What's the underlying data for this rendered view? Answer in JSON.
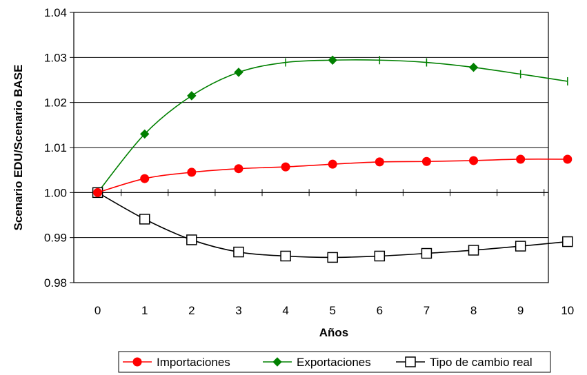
{
  "chart_data": {
    "type": "line",
    "title": "",
    "xlabel": "Años",
    "ylabel": "Scenario EDU/Scenario BASE",
    "x": [
      0,
      1,
      2,
      3,
      4,
      5,
      6,
      7,
      8,
      9,
      10
    ],
    "xlim": [
      0,
      10
    ],
    "ylim": [
      0.98,
      1.04
    ],
    "yticks": [
      "0.98",
      "0.99",
      "1.00",
      "1.01",
      "1.02",
      "1.03",
      "1.04"
    ],
    "grid": "horizontal",
    "legend_position": "bottom",
    "series": [
      {
        "name": "Importaciones",
        "color": "#ff0000",
        "marker": "circle",
        "values": [
          1.0,
          1.0031,
          1.0045,
          1.0053,
          1.0057,
          1.0063,
          1.0068,
          1.0069,
          1.0071,
          1.0074,
          1.0074
        ]
      },
      {
        "name": "Exportaciones",
        "color": "#008000",
        "marker": "diamond",
        "values": [
          1.0,
          1.013,
          1.0215,
          1.0267,
          1.0289,
          1.0294,
          1.0294,
          1.0289,
          1.0278,
          1.0263,
          1.0247
        ]
      },
      {
        "name": "Tipo de cambio real",
        "color": "#000000",
        "marker": "square-open",
        "values": [
          1.0,
          0.9941,
          0.9895,
          0.9868,
          0.9859,
          0.9856,
          0.9859,
          0.9865,
          0.9872,
          0.9881,
          0.9891
        ]
      }
    ]
  }
}
